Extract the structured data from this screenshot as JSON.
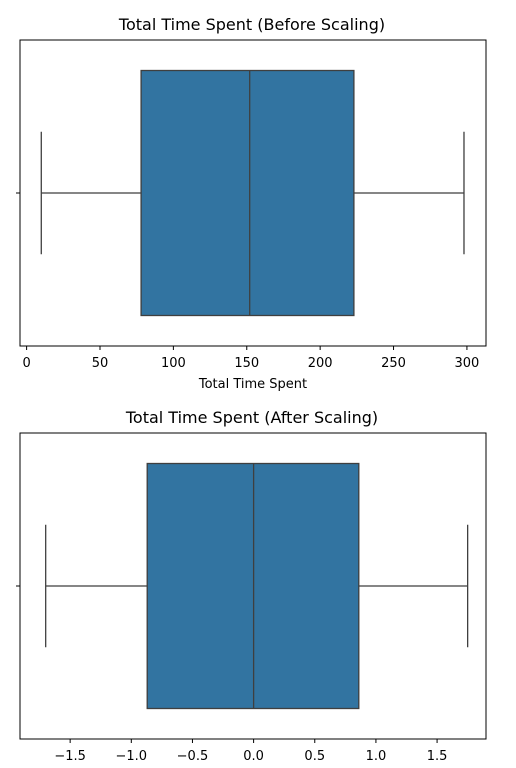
{
  "chart_data": [
    {
      "type": "box",
      "title": "Total Time Spent (Before Scaling)",
      "xlabel": "Total Time Spent",
      "ylabel": "",
      "xlim": [
        -4.5,
        313
      ],
      "xticks": [
        0,
        50,
        100,
        150,
        200,
        250,
        300
      ],
      "tick_labels": [
        "0",
        "50",
        "100",
        "150",
        "200",
        "250",
        "300"
      ],
      "box": {
        "whisker_low": 10,
        "q1": 78,
        "median": 152,
        "q3": 223,
        "whisker_high": 298
      },
      "box_color": "#3274a1",
      "line_color": "#3f3f3f"
    },
    {
      "type": "box",
      "title": "Total Time Spent (After Scaling)",
      "xlabel": "",
      "ylabel": "",
      "xlim": [
        -1.91,
        1.9
      ],
      "xticks": [
        -1.5,
        -1.0,
        -0.5,
        0.0,
        0.5,
        1.0,
        1.5
      ],
      "tick_labels": [
        "−1.5",
        "−1.0",
        "−0.5",
        "0.0",
        "0.5",
        "1.0",
        "1.5"
      ],
      "box": {
        "whisker_low": -1.7,
        "q1": -0.87,
        "median": 0.0,
        "q3": 0.86,
        "whisker_high": 1.75
      },
      "box_color": "#3274a1",
      "line_color": "#3f3f3f"
    }
  ]
}
